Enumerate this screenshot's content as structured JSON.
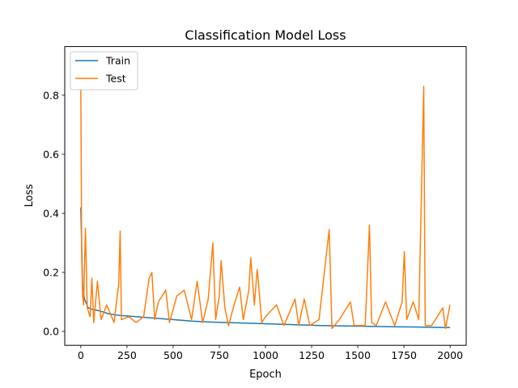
{
  "chart_data": {
    "type": "line",
    "title": "Classification Model Loss",
    "xlabel": "Epoch",
    "ylabel": "Loss",
    "xlim": [
      -87,
      2087
    ],
    "ylim": [
      -0.047,
      0.965
    ],
    "xticks": [
      0,
      250,
      500,
      750,
      1000,
      1250,
      1500,
      1750,
      2000
    ],
    "yticks": [
      0.0,
      0.2,
      0.4,
      0.6,
      0.8
    ],
    "xtick_labels": [
      "0",
      "250",
      "500",
      "750",
      "1000",
      "1250",
      "1500",
      "1750",
      "2000"
    ],
    "ytick_labels": [
      "0.0",
      "0.2",
      "0.4",
      "0.6",
      "0.8"
    ],
    "grid": false,
    "legend_position": "top-left",
    "series": [
      {
        "name": "Train",
        "color": "#1f77b4",
        "points": [
          [
            0,
            0.42
          ],
          [
            5,
            0.28
          ],
          [
            10,
            0.15
          ],
          [
            20,
            0.11
          ],
          [
            40,
            0.08
          ],
          [
            60,
            0.075
          ],
          [
            100,
            0.07
          ],
          [
            150,
            0.06
          ],
          [
            200,
            0.055
          ],
          [
            300,
            0.05
          ],
          [
            400,
            0.045
          ],
          [
            500,
            0.04
          ],
          [
            600,
            0.035
          ],
          [
            700,
            0.032
          ],
          [
            800,
            0.03
          ],
          [
            900,
            0.028
          ],
          [
            1000,
            0.026
          ],
          [
            1100,
            0.024
          ],
          [
            1200,
            0.022
          ],
          [
            1300,
            0.02
          ],
          [
            1400,
            0.019
          ],
          [
            1500,
            0.018
          ],
          [
            1600,
            0.017
          ],
          [
            1700,
            0.016
          ],
          [
            1800,
            0.015
          ],
          [
            1900,
            0.014
          ],
          [
            1999,
            0.013
          ]
        ]
      },
      {
        "name": "Test",
        "color": "#ff7f0e",
        "points": [
          [
            0,
            0.82
          ],
          [
            5,
            0.25
          ],
          [
            10,
            0.12
          ],
          [
            15,
            0.09
          ],
          [
            25,
            0.35
          ],
          [
            35,
            0.08
          ],
          [
            50,
            0.05
          ],
          [
            60,
            0.18
          ],
          [
            70,
            0.03
          ],
          [
            90,
            0.17
          ],
          [
            110,
            0.04
          ],
          [
            140,
            0.09
          ],
          [
            180,
            0.03
          ],
          [
            205,
            0.16
          ],
          [
            213,
            0.34
          ],
          [
            220,
            0.04
          ],
          [
            260,
            0.05
          ],
          [
            300,
            0.03
          ],
          [
            340,
            0.05
          ],
          [
            370,
            0.18
          ],
          [
            385,
            0.2
          ],
          [
            400,
            0.04
          ],
          [
            420,
            0.1
          ],
          [
            460,
            0.14
          ],
          [
            480,
            0.03
          ],
          [
            520,
            0.12
          ],
          [
            560,
            0.14
          ],
          [
            600,
            0.04
          ],
          [
            630,
            0.17
          ],
          [
            660,
            0.03
          ],
          [
            690,
            0.11
          ],
          [
            715,
            0.3
          ],
          [
            730,
            0.04
          ],
          [
            750,
            0.12
          ],
          [
            760,
            0.24
          ],
          [
            780,
            0.08
          ],
          [
            800,
            0.02
          ],
          [
            830,
            0.09
          ],
          [
            860,
            0.15
          ],
          [
            880,
            0.04
          ],
          [
            910,
            0.14
          ],
          [
            920,
            0.25
          ],
          [
            940,
            0.09
          ],
          [
            955,
            0.21
          ],
          [
            960,
            0.18
          ],
          [
            980,
            0.03
          ],
          [
            1000,
            0.05
          ],
          [
            1060,
            0.09
          ],
          [
            1100,
            0.02
          ],
          [
            1160,
            0.11
          ],
          [
            1180,
            0.02
          ],
          [
            1210,
            0.11
          ],
          [
            1240,
            0.02
          ],
          [
            1290,
            0.04
          ],
          [
            1345,
            0.345
          ],
          [
            1360,
            0.01
          ],
          [
            1400,
            0.04
          ],
          [
            1460,
            0.1
          ],
          [
            1480,
            0.02
          ],
          [
            1540,
            0.02
          ],
          [
            1563,
            0.36
          ],
          [
            1575,
            0.03
          ],
          [
            1600,
            0.02
          ],
          [
            1650,
            0.1
          ],
          [
            1700,
            0.02
          ],
          [
            1740,
            0.1
          ],
          [
            1752,
            0.27
          ],
          [
            1765,
            0.04
          ],
          [
            1800,
            0.1
          ],
          [
            1830,
            0.04
          ],
          [
            1857,
            0.83
          ],
          [
            1865,
            0.02
          ],
          [
            1900,
            0.02
          ],
          [
            1960,
            0.08
          ],
          [
            1975,
            0.01
          ],
          [
            1999,
            0.09
          ]
        ]
      }
    ]
  }
}
